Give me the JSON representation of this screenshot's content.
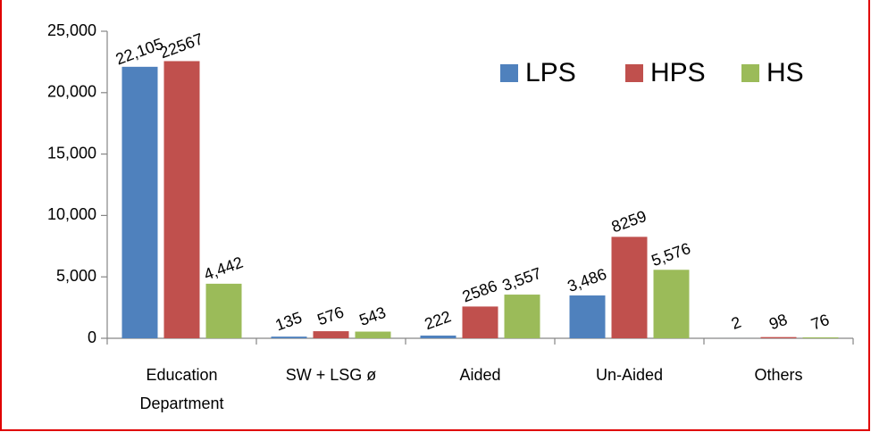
{
  "chart_data": {
    "type": "bar",
    "categories": [
      "Education Department",
      "SW + LSG ø",
      "Aided",
      "Un-Aided",
      "Others"
    ],
    "series": [
      {
        "name": "LPS",
        "color": "#4f81bd",
        "values": [
          22105,
          135,
          222,
          3486,
          2
        ],
        "value_labels": [
          "22,105",
          "135",
          "222",
          "3,486",
          "2"
        ]
      },
      {
        "name": "HPS",
        "color": "#c0504d",
        "values": [
          22567,
          576,
          2586,
          8259,
          98
        ]
      },
      {
        "name": "HS",
        "color": "#9bbb59",
        "values": [
          4442,
          543,
          3557,
          5576,
          76
        ],
        "value_labels": [
          "4,442",
          "543",
          "3,557",
          "5,576",
          "76"
        ]
      }
    ],
    "ylim": [
      0,
      25000
    ],
    "yticks": [
      0,
      {
        "value": 5000,
        "label": "5,000"
      },
      {
        "value": 10000,
        "label": "10,000"
      },
      {
        "value": 15000,
        "label": "15,000"
      },
      {
        "value": 20000,
        "label": "20,000"
      },
      {
        "value": 25000,
        "label": "25,000"
      }
    ],
    "legend": "top-right",
    "grid": false
  }
}
